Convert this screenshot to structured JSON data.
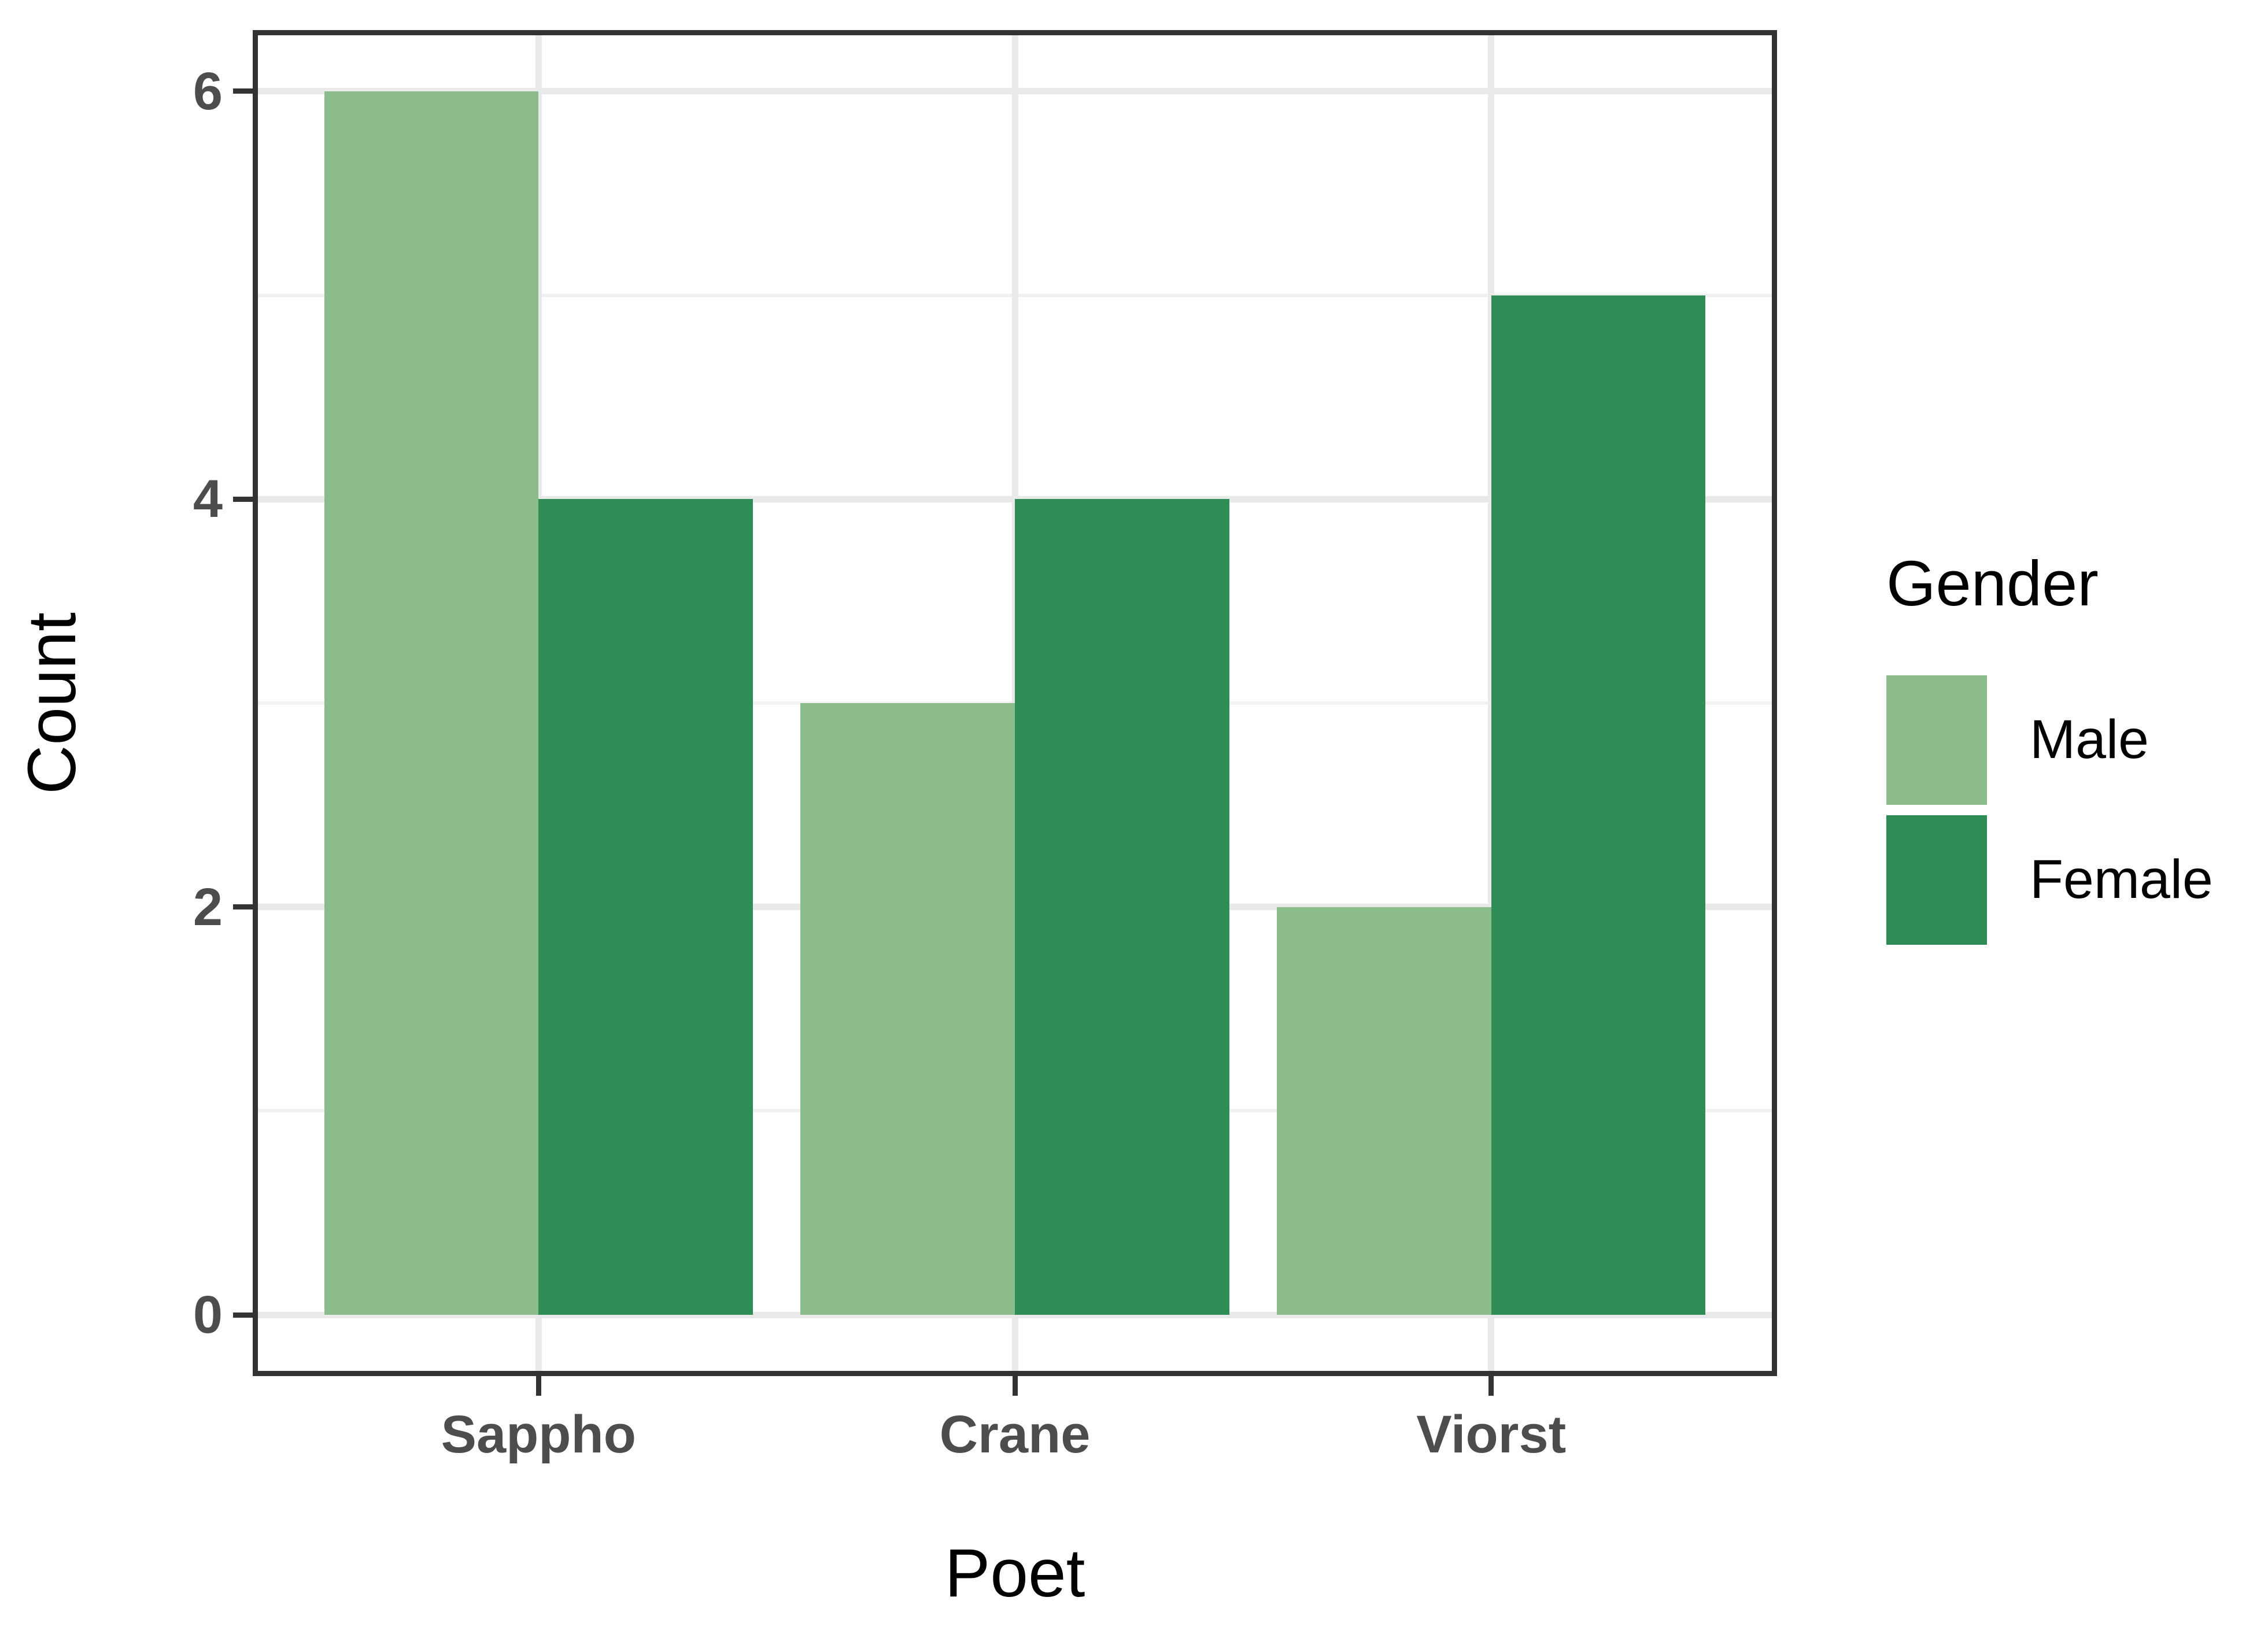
{
  "chart_data": {
    "type": "bar",
    "title": "",
    "categories": [
      "Sappho",
      "Crane",
      "Viorst"
    ],
    "series": [
      {
        "name": "Male",
        "color": "#8CBB8C",
        "values": [
          6,
          3,
          2
        ]
      },
      {
        "name": "Female",
        "color": "#2E8C57",
        "values": [
          4,
          4,
          5
        ]
      }
    ],
    "xlabel": "Poet",
    "ylabel": "Count",
    "ylim": [
      0,
      6
    ],
    "yticks": [
      0,
      2,
      4,
      6
    ],
    "ytick_labels": [
      "0",
      "2",
      "4",
      "6"
    ],
    "grid": true,
    "legend_title": "Gender",
    "legend_position": "right",
    "bar_mode": "grouped",
    "panel_border_color": "#333333",
    "tick_label_color": "#4d4d4d",
    "grid_major_color": "#e9e9e9",
    "grid_minor_color": "#f1f1f1"
  }
}
